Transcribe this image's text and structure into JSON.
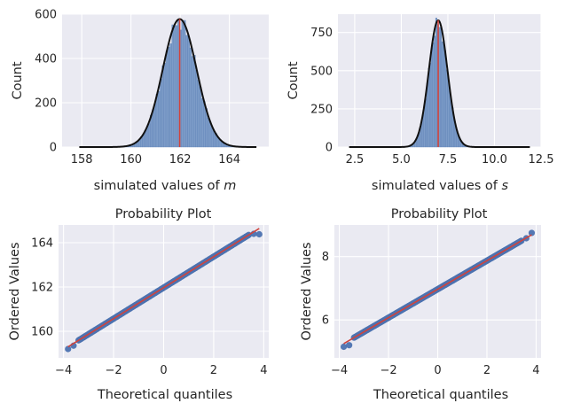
{
  "chart_data": [
    {
      "type": "histogram",
      "xlabel_prefix": "simulated values of ",
      "xlabel_var": "m",
      "ylabel": "Count",
      "xlim": [
        157.2,
        165.6
      ],
      "ylim": [
        0,
        600
      ],
      "xticks": [
        158,
        160,
        162,
        164
      ],
      "yticks": [
        0,
        200,
        400,
        600
      ],
      "grid": true,
      "hist": {
        "mean": 161.98,
        "sd": 0.69,
        "peak": 565,
        "bin_width": 0.08,
        "range": [
          157.9,
          165.1
        ]
      },
      "density_curve": {
        "mean": 161.98,
        "sd": 0.69,
        "peak": 578
      },
      "vline_x": 161.98
    },
    {
      "type": "histogram",
      "xlabel_prefix": "simulated values of ",
      "xlabel_var": "s",
      "ylabel": "Count",
      "xlim": [
        1.6,
        12.5
      ],
      "ylim": [
        0,
        870
      ],
      "xticks": [
        2.5,
        5.0,
        7.5,
        10.0,
        12.5
      ],
      "xtick_labels": [
        "2.5",
        "5.0",
        "7.5",
        "10.0",
        "12.5"
      ],
      "yticks": [
        0,
        250,
        500,
        750
      ],
      "grid": true,
      "hist": {
        "mean": 6.98,
        "sd": 0.5,
        "peak": 805,
        "bin_width": 0.08,
        "range": [
          2.2,
          11.9
        ]
      },
      "density_curve": {
        "mean": 6.98,
        "sd": 0.5,
        "peak": 830
      },
      "vline_x": 6.98
    },
    {
      "type": "scatter",
      "title": "Probability Plot",
      "xlabel": "Theoretical quantiles",
      "ylabel": "Ordered Values",
      "xlim": [
        -4.2,
        4.2
      ],
      "ylim": [
        158.8,
        164.8
      ],
      "xticks": [
        -4,
        -2,
        0,
        2,
        4
      ],
      "yticks": [
        160,
        162,
        164
      ],
      "grid": true,
      "points": {
        "x_from": -3.82,
        "x_to": 3.82,
        "intercept": 161.97,
        "slope": 0.7,
        "tail_low": [
          [
            -3.82,
            159.2
          ],
          [
            -3.6,
            159.35
          ]
        ],
        "tail_high": [
          [
            3.6,
            164.4
          ],
          [
            3.82,
            164.38
          ]
        ]
      },
      "fit_line": {
        "intercept": 161.97,
        "slope": 0.7,
        "x_from": -3.82,
        "x_to": 3.82
      }
    },
    {
      "type": "scatter",
      "title": "Probability Plot",
      "xlabel": "Theoretical quantiles",
      "ylabel": "Ordered Values",
      "xlim": [
        -4.2,
        4.2
      ],
      "ylim": [
        4.8,
        9.0
      ],
      "xticks": [
        -4,
        -2,
        0,
        2,
        4
      ],
      "yticks": [
        6,
        8
      ],
      "grid": true,
      "points": {
        "x_from": -3.82,
        "x_to": 3.82,
        "intercept": 6.97,
        "slope": 0.45,
        "tail_low": [
          [
            -3.82,
            5.15
          ],
          [
            -3.6,
            5.2
          ]
        ],
        "tail_high": [
          [
            3.6,
            8.58
          ],
          [
            3.82,
            8.75
          ]
        ]
      },
      "fit_line": {
        "intercept": 6.97,
        "slope": 0.45,
        "x_from": -3.82,
        "x_to": 3.82
      }
    }
  ],
  "colors": {
    "panel": "#eaeaf2",
    "grid": "#ffffff",
    "bars": "#7d9cc8",
    "bar_edge": "#5b7fb5",
    "curve": "#111111",
    "red": "#d0433c",
    "points": "#4c72b0"
  }
}
